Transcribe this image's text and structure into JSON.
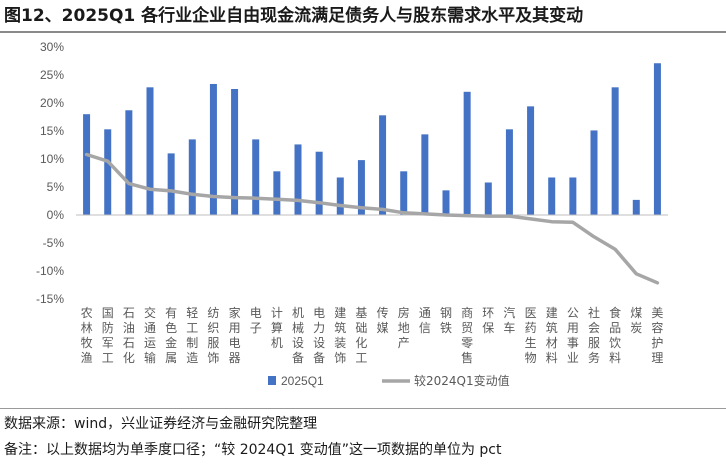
{
  "title": "图12、2025Q1 各行业企业自由现金流满足债务人与股东需求水平及其变动",
  "notes": {
    "source": "数据来源：wind，兴业证券经济与金融研究院整理",
    "remark": "备注：以上数据均为单季度口径；“较 2024Q1 变动值”这一项数据的单位为 pct"
  },
  "colors": {
    "bar": "#4472C4",
    "line": "#A6A6A6",
    "axis_text": "#595959",
    "grid": "#D9D9D9",
    "zero_axis": "#BFBFBF"
  },
  "chart_data": {
    "type": "bar",
    "categories": [
      "农林牧渔",
      "国防军工",
      "石油石化",
      "交通运输",
      "有色金属",
      "轻工制造",
      "纺织服饰",
      "家用电器",
      "电子",
      "计算机",
      "机械设备",
      "电力设备",
      "建筑装饰",
      "基础化工",
      "传媒",
      "房地产",
      "通信",
      "钢铁",
      "商贸零售",
      "环保",
      "汽车",
      "医药生物",
      "建筑材料",
      "公用事业",
      "社会服务",
      "食品饮料",
      "煤炭",
      "美容护理"
    ],
    "series": [
      {
        "name": "2025Q1",
        "type": "bar",
        "values": [
          18.0,
          15.3,
          18.7,
          22.8,
          11.0,
          13.5,
          23.4,
          22.5,
          13.5,
          7.8,
          12.6,
          11.3,
          6.7,
          9.8,
          17.8,
          7.8,
          14.4,
          4.4,
          22.0,
          5.8,
          15.3,
          19.4,
          6.7,
          6.7,
          15.1,
          22.8,
          2.7,
          27.1
        ]
      },
      {
        "name": "较2024Q1变动值",
        "type": "line",
        "values": [
          10.8,
          9.6,
          5.6,
          4.6,
          4.3,
          3.7,
          3.3,
          3.1,
          3.0,
          2.8,
          2.6,
          2.2,
          1.7,
          1.3,
          1.0,
          0.4,
          0.2,
          0.0,
          -0.1,
          -0.2,
          -0.2,
          -0.7,
          -1.2,
          -1.3,
          -3.9,
          -6.1,
          -10.5,
          -12.1
        ]
      }
    ],
    "ylim": [
      -15,
      30
    ],
    "yticks": [
      -15,
      -10,
      -5,
      0,
      5,
      10,
      15,
      20,
      25,
      30
    ],
    "ytick_labels": [
      "-15%",
      "-10%",
      "-5%",
      "0%",
      "5%",
      "10%",
      "15%",
      "20%",
      "25%",
      "30%"
    ],
    "legend_position": "bottom",
    "grid": false
  }
}
